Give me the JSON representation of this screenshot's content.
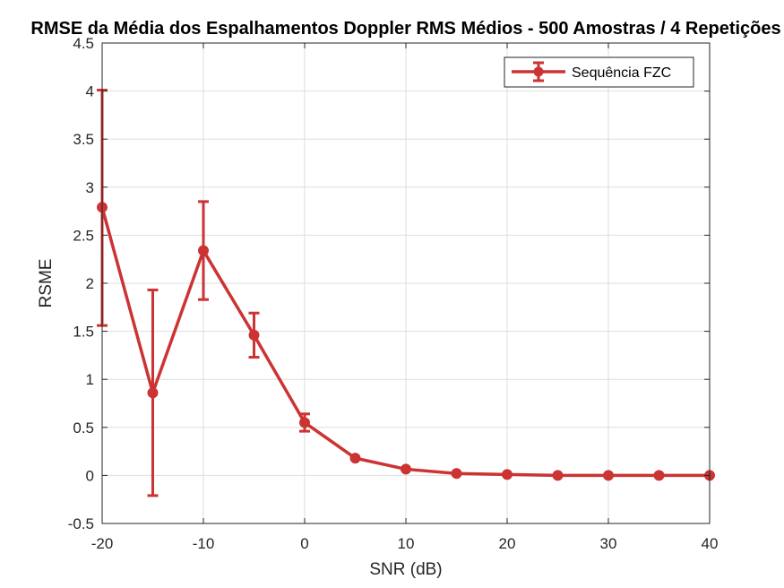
{
  "chart_data": {
    "type": "line",
    "title": "RMSE da Média dos Espalhamentos Doppler RMS Médios - 500 Amostras / 4 Repetições",
    "xlabel": "SNR (dB)",
    "ylabel": "RSME",
    "xlim": [
      -20,
      40
    ],
    "ylim": [
      -0.5,
      4.5
    ],
    "xticks": [
      -20,
      -10,
      0,
      10,
      20,
      30,
      40
    ],
    "yticks": [
      -0.5,
      0,
      0.5,
      1,
      1.5,
      2,
      2.5,
      3,
      3.5,
      4,
      4.5
    ],
    "xtick_labels": [
      "-20",
      "-10",
      "0",
      "10",
      "20",
      "30",
      "40"
    ],
    "ytick_labels": [
      "-0.5",
      "0",
      "0.5",
      "1",
      "1.5",
      "2",
      "2.5",
      "3",
      "3.5",
      "4",
      "4.5"
    ],
    "grid": true,
    "legend_position": "top-right",
    "series": [
      {
        "name": "Sequência FZC",
        "color": "#cc3333",
        "x": [
          -20,
          -15,
          -10,
          -5,
          0,
          5,
          10,
          15,
          20,
          25,
          30,
          35,
          40
        ],
        "y": [
          2.79,
          0.86,
          2.34,
          1.46,
          0.55,
          0.18,
          0.065,
          0.02,
          0.01,
          0.0,
          0.0,
          0.0,
          0.0
        ],
        "err_lower": [
          1.56,
          -0.21,
          1.83,
          1.23,
          0.46,
          null,
          null,
          null,
          null,
          null,
          null,
          null,
          null
        ],
        "err_upper": [
          4.01,
          1.93,
          2.85,
          1.69,
          0.64,
          null,
          null,
          null,
          null,
          null,
          null,
          null,
          null
        ]
      }
    ]
  }
}
